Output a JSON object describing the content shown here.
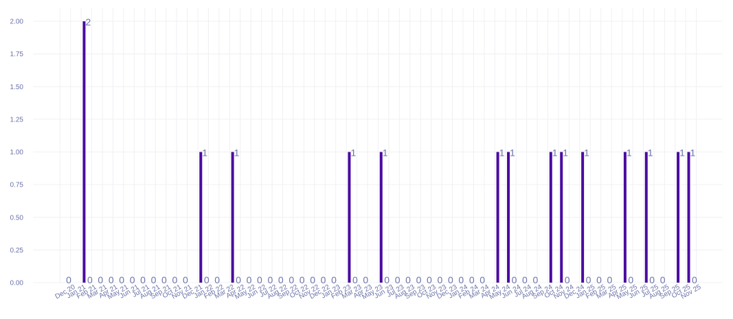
{
  "chart_data": {
    "type": "bar",
    "categories": [
      "Dec 20",
      "Jan 21",
      "Feb 21",
      "Mar 21",
      "Apr 21",
      "May 21",
      "Jun 21",
      "Jul 21",
      "Aug 21",
      "Sep 21",
      "Oct 21",
      "Nov 21",
      "Dec 21",
      "Jan 22",
      "Feb 22",
      "Mar 22",
      "Apr 22",
      "May 22",
      "Jun 22",
      "Jul 22",
      "Aug 22",
      "Sep 22",
      "Oct 22",
      "Nov 22",
      "Dec 22",
      "Jan 23",
      "Feb 23",
      "Mar 23",
      "Apr 23",
      "May 23",
      "Jun 23",
      "Jul 23",
      "Aug 23",
      "Sep 23",
      "Oct 23",
      "Nov 23",
      "Dec 23",
      "Jan 24",
      "Feb 24",
      "Mar 24",
      "Apr 24",
      "May 24",
      "Jun 24",
      "Jul 24",
      "Aug 24",
      "Sep 24",
      "Oct 24",
      "Nov 24",
      "Dec 24",
      "Jan 25",
      "Feb 25",
      "Mar 25",
      "Apr 25",
      "May 25",
      "Jun 25",
      "Jul 25",
      "Aug 25",
      "Sep 25",
      "Oct 25",
      "Nov 25"
    ],
    "values": [
      0,
      2,
      0,
      0,
      0,
      0,
      0,
      0,
      0,
      0,
      0,
      0,
      1,
      0,
      0,
      1,
      0,
      0,
      0,
      0,
      0,
      0,
      0,
      0,
      0,
      0,
      1,
      0,
      0,
      1,
      0,
      0,
      0,
      0,
      0,
      0,
      0,
      0,
      0,
      0,
      1,
      1,
      0,
      0,
      0,
      1,
      1,
      0,
      1,
      0,
      0,
      0,
      1,
      0,
      1,
      0,
      0,
      1,
      1,
      0
    ],
    "ylim": [
      0,
      2.1
    ],
    "yticks": [
      "0.00",
      "0.25",
      "0.50",
      "0.75",
      "1.00",
      "1.25",
      "1.50",
      "1.75",
      "2.00"
    ],
    "grid": true,
    "bar_color": "#4a0ba0",
    "label_color": "#6a72a8"
  }
}
